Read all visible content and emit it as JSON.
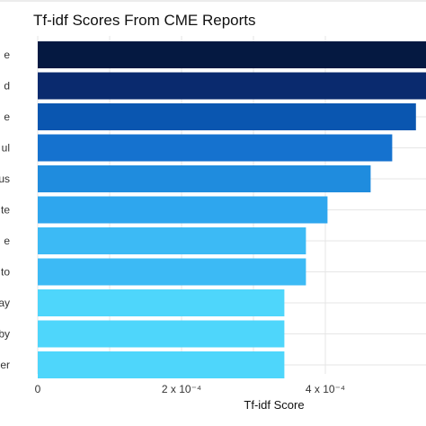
{
  "chart_data": {
    "type": "bar",
    "orientation": "horizontal",
    "title": "Tf-idf Scores From CME Reports",
    "xlabel": "Tf-idf Score",
    "ylabel": "",
    "categories": [
      "e",
      "d",
      "e",
      "ul",
      "us",
      "te",
      "e",
      "to",
      "ay",
      "by",
      "er"
    ],
    "values": [
      0.00058,
      0.00056,
      0.000526,
      0.000493,
      0.000463,
      0.000403,
      0.000373,
      0.000373,
      0.000343,
      0.000343,
      0.000343
    ],
    "colors": [
      "#051941",
      "#0a2a6e",
      "#0a56b0",
      "#1572cf",
      "#1f8cde",
      "#2ea6ee",
      "#3cbaf5",
      "#3cbaf5",
      "#4ed6fb",
      "#4ed6fb",
      "#4ed6fb"
    ],
    "xticks": [
      {
        "value": 0,
        "label": "0"
      },
      {
        "value": 0.0002,
        "label": "2 x 10⁻⁴"
      },
      {
        "value": 0.0004,
        "label": "4 x 10⁻⁴"
      }
    ],
    "xlim": [
      0,
      0.00054
    ],
    "grid": true,
    "legend": "none"
  }
}
